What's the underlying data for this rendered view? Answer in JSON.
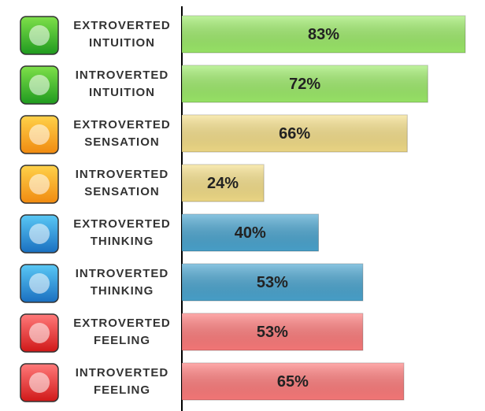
{
  "chart_data": {
    "type": "bar",
    "orientation": "horizontal",
    "categories": [
      "EXTROVERTED INTUITION",
      "INTROVERTED INTUITION",
      "EXTROVERTED SENSATION",
      "INTROVERTED SENSATION",
      "EXTROVERTED THINKING",
      "INTROVERTED THINKING",
      "EXTROVERTED FEELING",
      "INTROVERTED FEELING"
    ],
    "values": [
      83,
      72,
      66,
      24,
      40,
      53,
      53,
      65
    ],
    "value_labels": [
      "83%",
      "72%",
      "66%",
      "24%",
      "40%",
      "53%",
      "53%",
      "65%"
    ],
    "colors": [
      "#9eed6a",
      "#9eed6a",
      "#f6e08a",
      "#f6e08a",
      "#4ba6d1",
      "#4ba6d1",
      "#ff7c7c",
      "#ff7c7c"
    ]
  }
}
